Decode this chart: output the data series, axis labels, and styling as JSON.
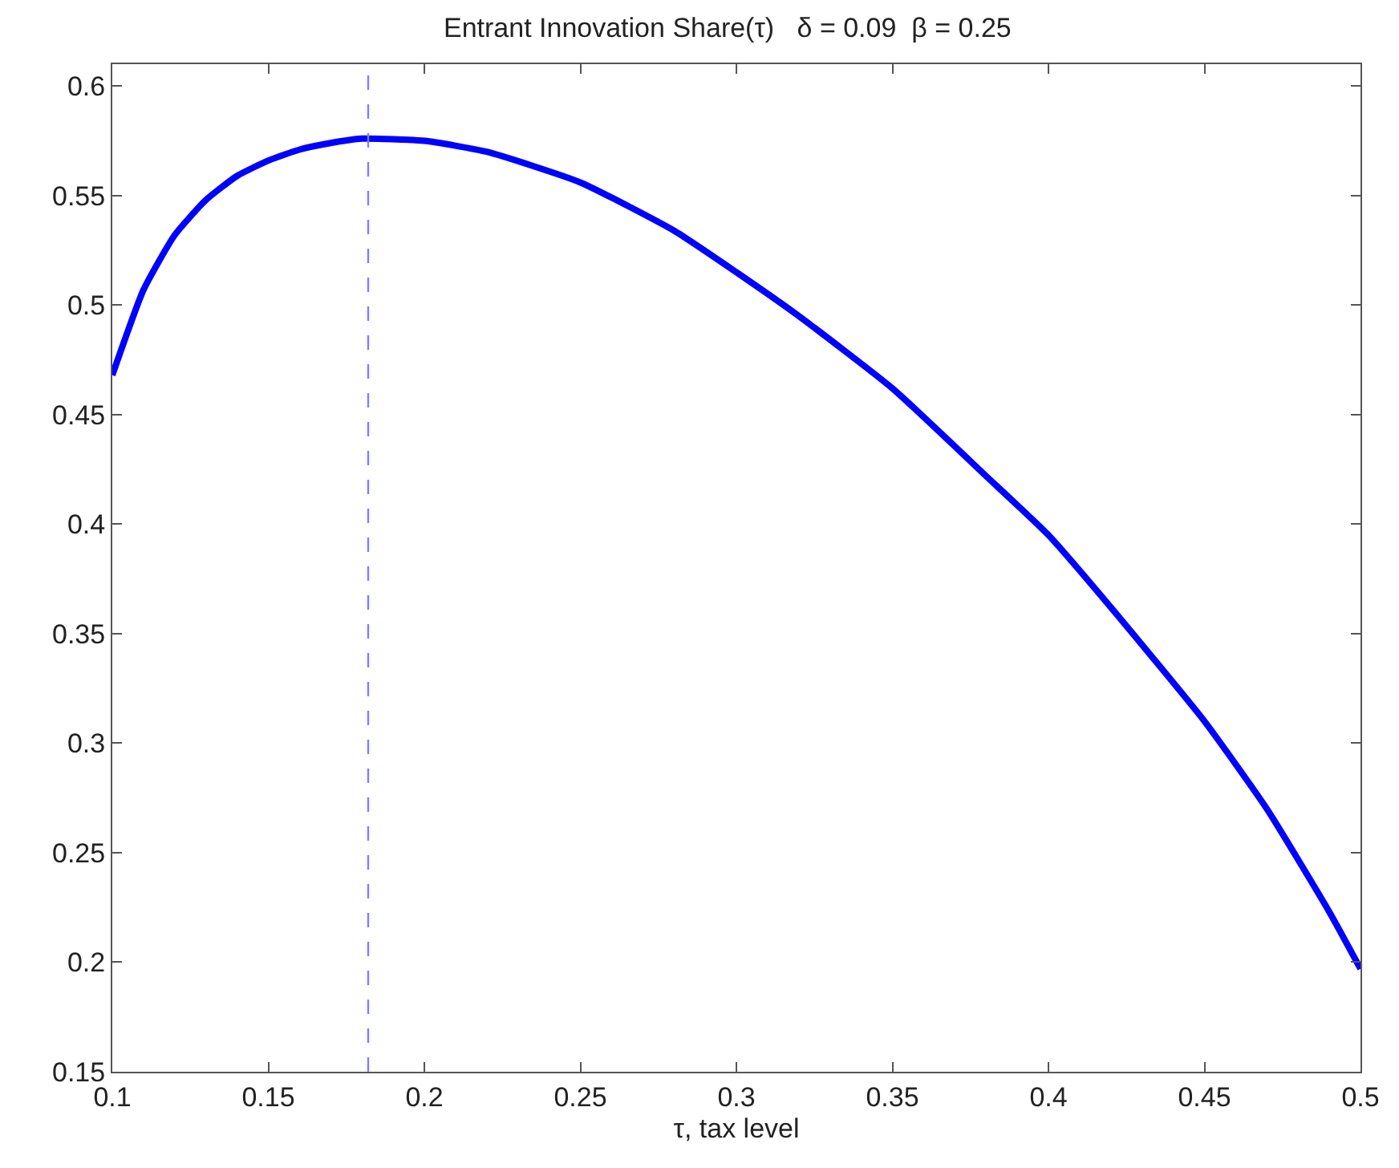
{
  "chart_data": {
    "type": "line",
    "title": "Entrant Innovation Share(τ)   δ = 0.09  β = 0.25",
    "xlabel": "τ, tax level",
    "x": [
      0.1,
      0.11,
      0.12,
      0.13,
      0.14,
      0.15,
      0.16,
      0.17,
      0.18,
      0.2,
      0.22,
      0.25,
      0.28,
      0.3,
      0.32,
      0.35,
      0.38,
      0.4,
      0.42,
      0.45,
      0.47,
      0.49,
      0.5
    ],
    "series": [
      {
        "color": "#0000ff",
        "values": [
          0.468,
          0.507,
          0.532,
          0.548,
          0.559,
          0.566,
          0.571,
          0.574,
          0.576,
          0.575,
          0.57,
          0.556,
          0.534,
          0.515,
          0.495,
          0.462,
          0.422,
          0.395,
          0.362,
          0.31,
          0.27,
          0.223,
          0.197
        ]
      }
    ],
    "xlim": [
      0.1,
      0.5
    ],
    "xticks": [
      0.1,
      0.15,
      0.2,
      0.25,
      0.3,
      0.35,
      0.4,
      0.45,
      0.5
    ],
    "ylim": [
      0.15,
      0.61
    ],
    "yticks": [
      0.15,
      0.2,
      0.25,
      0.3,
      0.35,
      0.4,
      0.45,
      0.5,
      0.55,
      0.6
    ],
    "ref_lines": [
      {
        "axis": "x",
        "value": 0.182,
        "color": "#7f7fff",
        "line_style": "dashed"
      }
    ],
    "marker": "none",
    "line_style": "solid"
  }
}
